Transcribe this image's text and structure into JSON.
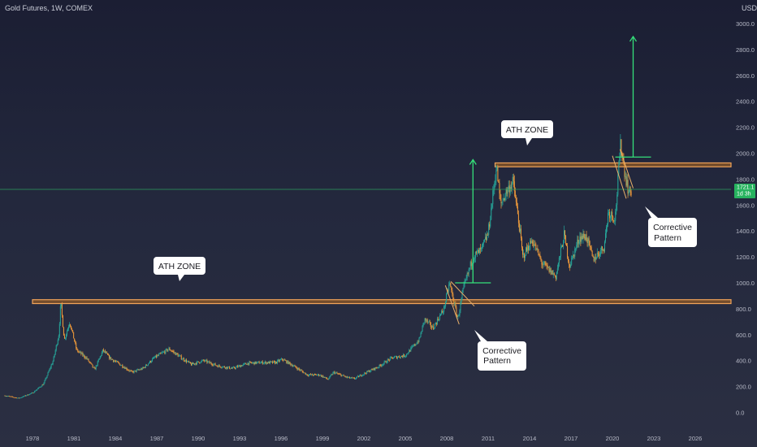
{
  "header": {
    "symbol": "Gold Futures, 1W, COMEX",
    "currency": "USD"
  },
  "chart_data": {
    "type": "candlestick",
    "symbol": "Gold Futures, 1W, COMEX",
    "currency": "USD",
    "ylim": [
      -200,
      3100
    ],
    "y_ticks": [
      0,
      200,
      400,
      600,
      800,
      1000,
      1200,
      1400,
      1600,
      1800,
      2000,
      2200,
      2400,
      2600,
      2800,
      3000
    ],
    "x_ticks": [
      1978,
      1981,
      1984,
      1987,
      1990,
      1993,
      1996,
      1999,
      2002,
      2005,
      2008,
      2011,
      2014,
      2017,
      2020,
      2023,
      2026
    ],
    "xlim": [
      1976.0,
      2029.0
    ],
    "current_price": {
      "value": 1721.1,
      "labels": [
        "1721.1",
        "1d 3h"
      ]
    },
    "price_path": [
      [
        1976.0,
        130
      ],
      [
        1977.0,
        110
      ],
      [
        1978.0,
        150
      ],
      [
        1978.8,
        220
      ],
      [
        1979.5,
        400
      ],
      [
        1979.9,
        600
      ],
      [
        1980.05,
        850
      ],
      [
        1980.3,
        560
      ],
      [
        1980.7,
        700
      ],
      [
        1981.2,
        480
      ],
      [
        1981.9,
        420
      ],
      [
        1982.5,
        330
      ],
      [
        1983.1,
        480
      ],
      [
        1983.6,
        420
      ],
      [
        1984.5,
        360
      ],
      [
        1985.2,
        310
      ],
      [
        1986.0,
        340
      ],
      [
        1986.8,
        420
      ],
      [
        1987.9,
        490
      ],
      [
        1988.8,
        420
      ],
      [
        1989.5,
        370
      ],
      [
        1990.4,
        400
      ],
      [
        1991.4,
        360
      ],
      [
        1992.5,
        340
      ],
      [
        1993.6,
        380
      ],
      [
        1994.6,
        385
      ],
      [
        1995.6,
        385
      ],
      [
        1996.1,
        410
      ],
      [
        1996.9,
        360
      ],
      [
        1997.9,
        290
      ],
      [
        1998.8,
        290
      ],
      [
        1999.4,
        255
      ],
      [
        1999.8,
        310
      ],
      [
        2000.8,
        270
      ],
      [
        2001.3,
        260
      ],
      [
        2002.2,
        310
      ],
      [
        2003.0,
        350
      ],
      [
        2004.0,
        420
      ],
      [
        2005.0,
        440
      ],
      [
        2006.0,
        560
      ],
      [
        2006.4,
        720
      ],
      [
        2007.0,
        650
      ],
      [
        2007.8,
        800
      ],
      [
        2008.2,
        1000
      ],
      [
        2008.8,
        720
      ],
      [
        2009.2,
        950
      ],
      [
        2009.9,
        1200
      ],
      [
        2010.5,
        1250
      ],
      [
        2011.0,
        1380
      ],
      [
        2011.6,
        1900
      ],
      [
        2011.9,
        1600
      ],
      [
        2012.3,
        1700
      ],
      [
        2012.8,
        1780
      ],
      [
        2013.3,
        1400
      ],
      [
        2013.5,
        1200
      ],
      [
        2014.2,
        1330
      ],
      [
        2014.9,
        1150
      ],
      [
        2015.9,
        1050
      ],
      [
        2016.5,
        1370
      ],
      [
        2016.9,
        1130
      ],
      [
        2017.6,
        1350
      ],
      [
        2018.1,
        1360
      ],
      [
        2018.6,
        1180
      ],
      [
        2019.4,
        1280
      ],
      [
        2019.7,
        1550
      ],
      [
        2020.2,
        1500
      ],
      [
        2020.6,
        2080
      ],
      [
        2020.9,
        1850
      ],
      [
        2021.2,
        1690
      ],
      [
        2021.4,
        1721
      ]
    ],
    "ath_zones": [
      {
        "label": "ATH ZONE",
        "low": 840,
        "high": 870,
        "x_start": 1978.0,
        "x_end": 2029.0
      },
      {
        "label": "ATH ZONE",
        "low": 1895,
        "high": 1925,
        "x_start": 2011.5,
        "x_end": 2029.0
      }
    ],
    "annotations": [
      {
        "text": [
          "Corrective",
          "Pattern"
        ]
      },
      {
        "text": [
          "Corrective",
          "Pattern"
        ]
      }
    ],
    "projections": [
      {
        "x": 2009.9,
        "from": 1000,
        "to": 1950
      },
      {
        "x": 2021.5,
        "from": 1970,
        "to": 2900
      }
    ],
    "colors": {
      "background_top": "#1b1e33",
      "background_bottom": "#2b2f42",
      "up_candle": "#26a69a",
      "down_candle": "#ef9a3a",
      "ath_zone_fill": "#b56a1e",
      "ath_zone_edge": "#f0a35a",
      "projection_arrow": "#35e07a",
      "current_price_line": "#2e9c5e",
      "current_price_label": "#27b35f",
      "corrective_lines": "#e8b06a",
      "callout_bg": "#ffffff"
    }
  }
}
